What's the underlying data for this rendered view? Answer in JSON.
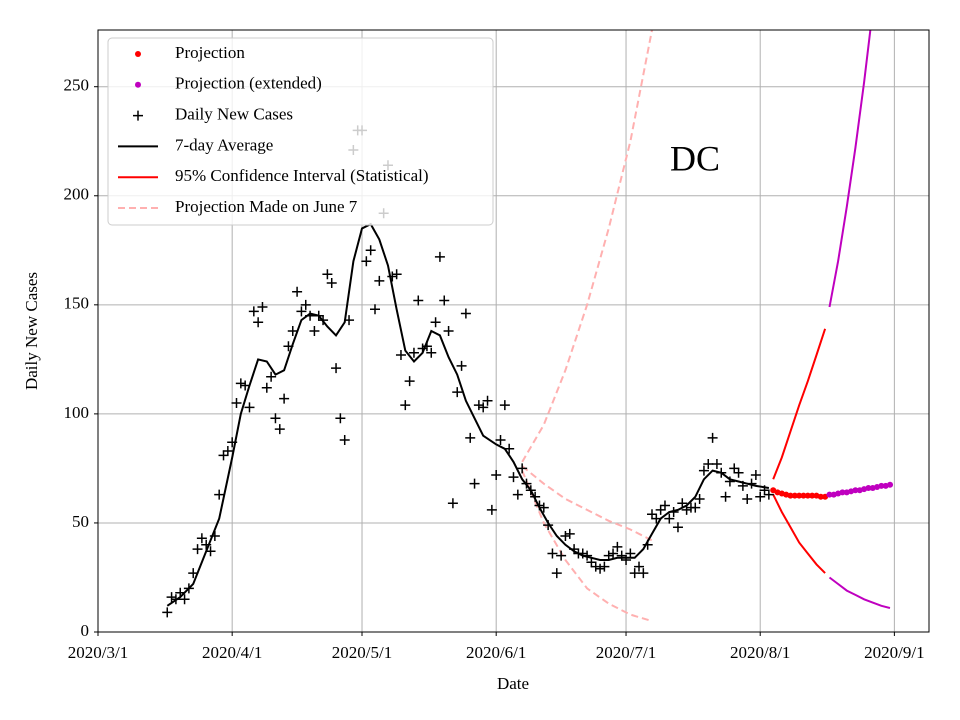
{
  "chart_data": {
    "type": "line",
    "title": "DC",
    "xlabel": "Date",
    "ylabel": "Daily New Cases",
    "xlim": [
      "2020-03-01",
      "2020-09-09"
    ],
    "ylim": [
      0,
      276
    ],
    "xticks": [
      {
        "value": "2020-03-01",
        "label": "2020/3/1"
      },
      {
        "value": "2020-04-01",
        "label": "2020/4/1"
      },
      {
        "value": "2020-05-01",
        "label": "2020/5/1"
      },
      {
        "value": "2020-06-01",
        "label": "2020/6/1"
      },
      {
        "value": "2020-07-01",
        "label": "2020/7/1"
      },
      {
        "value": "2020-08-01",
        "label": "2020/8/1"
      },
      {
        "value": "2020-09-01",
        "label": "2020/9/1"
      }
    ],
    "yticks": [
      0,
      50,
      100,
      150,
      200,
      250
    ],
    "grid": true,
    "legend": "upper left",
    "series": [
      {
        "name": "Projection",
        "color": "#ff0000",
        "style": "dots",
        "x": [
          "2020-08-04",
          "2020-08-05",
          "2020-08-06",
          "2020-08-07",
          "2020-08-08",
          "2020-08-09",
          "2020-08-10",
          "2020-08-11",
          "2020-08-12",
          "2020-08-13",
          "2020-08-14",
          "2020-08-15",
          "2020-08-16"
        ],
        "values": [
          65,
          64,
          63.5,
          63,
          62.5,
          62.5,
          62.5,
          62.5,
          62.5,
          62.5,
          62.5,
          62,
          62
        ]
      },
      {
        "name": "Projection (extended)",
        "color": "#bf00bf",
        "style": "dots",
        "x": [
          "2020-08-17",
          "2020-08-18",
          "2020-08-19",
          "2020-08-20",
          "2020-08-21",
          "2020-08-22",
          "2020-08-23",
          "2020-08-24",
          "2020-08-25",
          "2020-08-26",
          "2020-08-27",
          "2020-08-28",
          "2020-08-29",
          "2020-08-30",
          "2020-08-31"
        ],
        "values": [
          63,
          63,
          63.5,
          64,
          64,
          64.5,
          65,
          65,
          65.5,
          66,
          66,
          66.5,
          67,
          67,
          67.5
        ]
      },
      {
        "name": "Daily New Cases",
        "color": "#000000",
        "style": "plus",
        "x": [
          "2020-03-17",
          "2020-03-18",
          "2020-03-19",
          "2020-03-20",
          "2020-03-21",
          "2020-03-22",
          "2020-03-23",
          "2020-03-24",
          "2020-03-25",
          "2020-03-26",
          "2020-03-27",
          "2020-03-28",
          "2020-03-29",
          "2020-03-30",
          "2020-03-31",
          "2020-04-01",
          "2020-04-02",
          "2020-04-03",
          "2020-04-04",
          "2020-04-05",
          "2020-04-06",
          "2020-04-07",
          "2020-04-08",
          "2020-04-09",
          "2020-04-10",
          "2020-04-11",
          "2020-04-12",
          "2020-04-13",
          "2020-04-14",
          "2020-04-15",
          "2020-04-16",
          "2020-04-17",
          "2020-04-18",
          "2020-04-19",
          "2020-04-20",
          "2020-04-21",
          "2020-04-22",
          "2020-04-23",
          "2020-04-24",
          "2020-04-25",
          "2020-04-26",
          "2020-04-27",
          "2020-04-28",
          "2020-04-29",
          "2020-04-30",
          "2020-05-01",
          "2020-05-02",
          "2020-05-03",
          "2020-05-04",
          "2020-05-05",
          "2020-05-06",
          "2020-05-07",
          "2020-05-08",
          "2020-05-09",
          "2020-05-10",
          "2020-05-11",
          "2020-05-12",
          "2020-05-13",
          "2020-05-14",
          "2020-05-15",
          "2020-05-16",
          "2020-05-17",
          "2020-05-18",
          "2020-05-19",
          "2020-05-20",
          "2020-05-21",
          "2020-05-22",
          "2020-05-23",
          "2020-05-24",
          "2020-05-25",
          "2020-05-26",
          "2020-05-27",
          "2020-05-28",
          "2020-05-29",
          "2020-05-30",
          "2020-05-31",
          "2020-06-01",
          "2020-06-02",
          "2020-06-03",
          "2020-06-04",
          "2020-06-05",
          "2020-06-06",
          "2020-06-07",
          "2020-06-08",
          "2020-06-09",
          "2020-06-10",
          "2020-06-11",
          "2020-06-12",
          "2020-06-13",
          "2020-06-14",
          "2020-06-15",
          "2020-06-16",
          "2020-06-17",
          "2020-06-18",
          "2020-06-19",
          "2020-06-20",
          "2020-06-21",
          "2020-06-22",
          "2020-06-23",
          "2020-06-24",
          "2020-06-25",
          "2020-06-26",
          "2020-06-27",
          "2020-06-28",
          "2020-06-29",
          "2020-06-30",
          "2020-07-01",
          "2020-07-02",
          "2020-07-03",
          "2020-07-04",
          "2020-07-05",
          "2020-07-06",
          "2020-07-07",
          "2020-07-08",
          "2020-07-09",
          "2020-07-10",
          "2020-07-11",
          "2020-07-12",
          "2020-07-13",
          "2020-07-14",
          "2020-07-15",
          "2020-07-16",
          "2020-07-17",
          "2020-07-18",
          "2020-07-19",
          "2020-07-20",
          "2020-07-21",
          "2020-07-22",
          "2020-07-23",
          "2020-07-24",
          "2020-07-25",
          "2020-07-26",
          "2020-07-27",
          "2020-07-28",
          "2020-07-29",
          "2020-07-30",
          "2020-07-31",
          "2020-08-01",
          "2020-08-02",
          "2020-08-03"
        ],
        "values": [
          9,
          16,
          15,
          18,
          15,
          20,
          27,
          38,
          43,
          40,
          37,
          44,
          63,
          81,
          83,
          87,
          105,
          114,
          113,
          103,
          147,
          142,
          149,
          112,
          117,
          98,
          93,
          107,
          131,
          138,
          156,
          147,
          150,
          145,
          138,
          145,
          143,
          164,
          160,
          121,
          98,
          88,
          143,
          221,
          230,
          230,
          170,
          175,
          148,
          161,
          192,
          214,
          163,
          164,
          127,
          104,
          115,
          128,
          152,
          130,
          131,
          128,
          142,
          172,
          152,
          138,
          59,
          110,
          122,
          146,
          89,
          68,
          104,
          103,
          106,
          56,
          72,
          88,
          104,
          84,
          71,
          63,
          75,
          68,
          65,
          62,
          58,
          57,
          49,
          36,
          27,
          35,
          44,
          45,
          38,
          36,
          36,
          35,
          32,
          30,
          29,
          30,
          35,
          36,
          39,
          35,
          33,
          36,
          27,
          30,
          27,
          40,
          54,
          52,
          56,
          58,
          52,
          55,
          48,
          59,
          56,
          57,
          57,
          61,
          74,
          77,
          89,
          77,
          73,
          62,
          69,
          75,
          73,
          67,
          61,
          68,
          72,
          62,
          65,
          63
        ]
      },
      {
        "name": "7-day Average",
        "color": "#000000",
        "style": "line",
        "x": [
          "2020-03-17",
          "2020-03-20",
          "2020-03-23",
          "2020-03-26",
          "2020-03-29",
          "2020-04-01",
          "2020-04-03",
          "2020-04-05",
          "2020-04-07",
          "2020-04-09",
          "2020-04-11",
          "2020-04-13",
          "2020-04-15",
          "2020-04-17",
          "2020-04-19",
          "2020-04-21",
          "2020-04-23",
          "2020-04-25",
          "2020-04-27",
          "2020-04-29",
          "2020-05-01",
          "2020-05-03",
          "2020-05-05",
          "2020-05-07",
          "2020-05-09",
          "2020-05-11",
          "2020-05-13",
          "2020-05-15",
          "2020-05-17",
          "2020-05-19",
          "2020-05-21",
          "2020-05-23",
          "2020-05-25",
          "2020-05-27",
          "2020-05-29",
          "2020-06-01",
          "2020-06-03",
          "2020-06-05",
          "2020-06-07",
          "2020-06-09",
          "2020-06-11",
          "2020-06-13",
          "2020-06-15",
          "2020-06-17",
          "2020-06-19",
          "2020-06-21",
          "2020-06-23",
          "2020-06-25",
          "2020-06-27",
          "2020-06-29",
          "2020-07-01",
          "2020-07-03",
          "2020-07-05",
          "2020-07-07",
          "2020-07-09",
          "2020-07-11",
          "2020-07-13",
          "2020-07-15",
          "2020-07-17",
          "2020-07-19",
          "2020-07-21",
          "2020-07-23",
          "2020-07-25",
          "2020-07-27",
          "2020-07-29",
          "2020-07-31",
          "2020-08-03"
        ],
        "values": [
          12,
          16,
          22,
          37,
          52,
          80,
          100,
          113,
          125,
          124,
          118,
          120,
          132,
          143,
          146,
          145,
          140,
          136,
          142,
          170,
          185,
          187,
          180,
          168,
          148,
          129,
          124,
          128,
          138,
          136,
          126,
          118,
          106,
          98,
          90,
          86,
          84,
          78,
          70,
          65,
          57,
          50,
          44,
          40,
          37,
          35,
          34,
          33,
          33,
          34,
          34,
          34,
          38,
          45,
          52,
          55,
          56,
          58,
          62,
          70,
          74,
          73,
          70,
          69,
          68,
          67,
          66
        ]
      }
    ],
    "ci": {
      "name": "95% Confidence Interval (Statistical)",
      "color": "#ff0000",
      "x": [
        "2020-08-04",
        "2020-08-06",
        "2020-08-08",
        "2020-08-10",
        "2020-08-12",
        "2020-08-14",
        "2020-08-16"
      ],
      "lower": [
        63,
        55,
        48,
        41,
        36,
        31,
        27
      ],
      "upper": [
        70,
        80,
        92,
        104,
        115,
        127,
        139
      ]
    },
    "ci_extended": {
      "color": "#bf00bf",
      "x": [
        "2020-08-17",
        "2020-08-19",
        "2020-08-21",
        "2020-08-23",
        "2020-08-25",
        "2020-08-27",
        "2020-08-29",
        "2020-08-31"
      ],
      "lower": [
        25,
        22,
        19,
        17,
        15,
        13.5,
        12,
        11
      ],
      "upper": [
        149,
        170,
        195,
        222,
        252,
        285,
        320,
        360
      ]
    },
    "june7": {
      "name": "Projection Made on June 7",
      "color": "#ffb0b0",
      "x": [
        "2020-06-07",
        "2020-06-12",
        "2020-06-17",
        "2020-06-22",
        "2020-06-27",
        "2020-07-02",
        "2020-07-07"
      ],
      "values": [
        76,
        68,
        61,
        56,
        51,
        47,
        42
      ],
      "upper": [
        78,
        95,
        120,
        150,
        185,
        225,
        276
      ],
      "lower": [
        74,
        50,
        33,
        20,
        13,
        8,
        5
      ]
    }
  }
}
